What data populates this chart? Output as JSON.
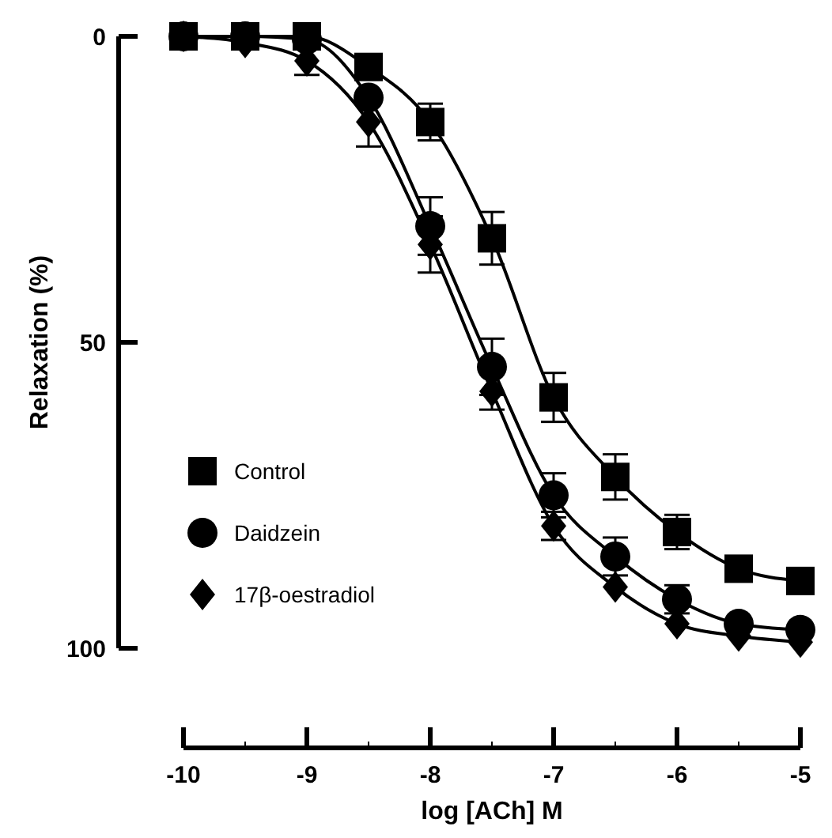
{
  "chart_data": {
    "type": "line",
    "xlabel": "log [ACh] M",
    "ylabel": "Relaxation (%)",
    "x": [
      -10,
      -9.5,
      -9,
      -8.5,
      -8,
      -7.5,
      -7,
      -6.5,
      -6,
      -5.5,
      -5
    ],
    "xlim": [
      -10,
      -5
    ],
    "xticks": [
      -10,
      -9,
      -8,
      -7,
      -6,
      -5
    ],
    "ylim": [
      100,
      0
    ],
    "yticks": [
      0,
      50,
      100
    ],
    "legend": "bottom left",
    "line_style": "solid",
    "grid": false,
    "series": [
      {
        "name": "Control",
        "color": "#000000",
        "marker": "square",
        "values": [
          0,
          0,
          0,
          5,
          14,
          33,
          59,
          72,
          81,
          87,
          89
        ],
        "errors": [
          null,
          null,
          null,
          null,
          3,
          4.3,
          4,
          3.7,
          2.8,
          null,
          null
        ]
      },
      {
        "name": "Daidzein",
        "color": "#000000",
        "marker": "circle",
        "values": [
          0,
          0,
          0.5,
          10,
          31,
          54,
          75,
          85,
          92,
          96,
          97
        ],
        "errors": [
          null,
          null,
          null,
          null,
          4.7,
          4.6,
          3.6,
          3.1,
          2.3,
          null,
          null
        ]
      },
      {
        "name": "17β-oestradiol",
        "color": "#000000",
        "marker": "diamond",
        "values": [
          0,
          1,
          4,
          14,
          34,
          58,
          80,
          90,
          96,
          98,
          99
        ],
        "errors": [
          null,
          null,
          2.3,
          4,
          4.6,
          3,
          2.3,
          null,
          null,
          null,
          null
        ]
      }
    ]
  }
}
